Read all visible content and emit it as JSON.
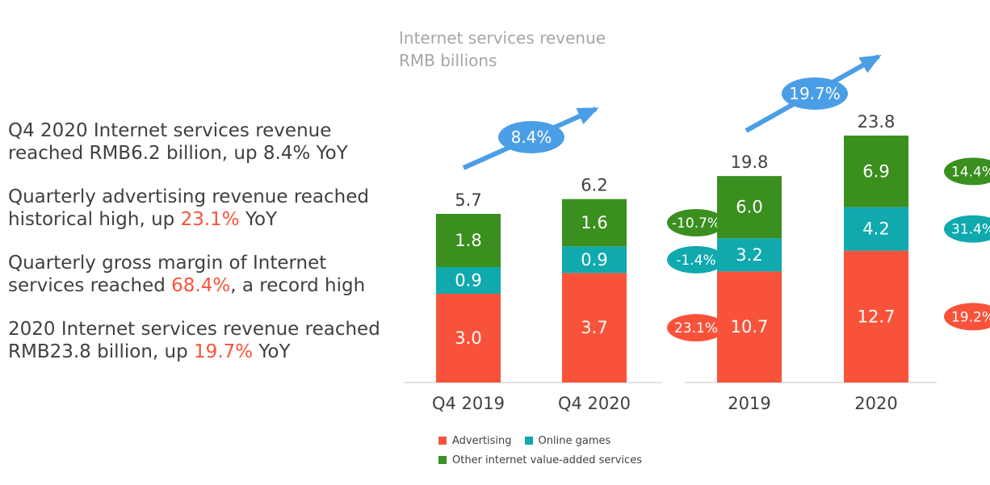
{
  "bullets": [
    {
      "parts": [
        {
          "text": "Q4 2020 Internet services revenue reached RMB6.2 billion, up 8.4% YoY",
          "highlight": false
        }
      ]
    },
    {
      "parts": [
        {
          "text": "Quarterly advertising revenue reached historical high, up ",
          "highlight": false
        },
        {
          "text": "23.1%",
          "highlight": true
        },
        {
          "text": " YoY",
          "highlight": false
        }
      ]
    },
    {
      "parts": [
        {
          "text": "Quarterly gross margin of Internet services reached ",
          "highlight": false
        },
        {
          "text": "68.4%",
          "highlight": true
        },
        {
          "text": ", a record high",
          "highlight": false
        }
      ]
    },
    {
      "parts": [
        {
          "text": "2020 Internet services revenue reached RMB23.8 billion, up ",
          "highlight": false
        },
        {
          "text": "19.7%",
          "highlight": true
        },
        {
          "text": " YoY",
          "highlight": false
        }
      ]
    }
  ],
  "colors": {
    "advertising": "#f8533a",
    "online_games": "#10a9ad",
    "other": "#3a8f1f",
    "arrow": "#4a9ee6",
    "text": "#404040",
    "title": "#a6a6a6",
    "highlight": "#f8533a"
  },
  "chart_data": {
    "type": "bar",
    "stacked": true,
    "title": "Internet services revenue",
    "subtitle": "RMB billions",
    "groups": [
      {
        "name": "quarterly",
        "categories": [
          "Q4 2019",
          "Q4 2020"
        ],
        "totals": [
          5.7,
          6.2
        ],
        "series": [
          {
            "name": "Advertising",
            "values": [
              3.0,
              3.7
            ]
          },
          {
            "name": "Online games",
            "values": [
              0.9,
              0.9
            ]
          },
          {
            "name": "Other internet value-added services",
            "values": [
              1.8,
              1.6
            ]
          }
        ],
        "growth_badges": {
          "Advertising": "23.1%",
          "Online games": "-1.4%",
          "Other internet value-added services": "-10.7%"
        },
        "total_growth": "8.4%"
      },
      {
        "name": "annual",
        "categories": [
          "2019",
          "2020"
        ],
        "totals": [
          19.8,
          23.8
        ],
        "series": [
          {
            "name": "Advertising",
            "values": [
              10.7,
              12.7
            ]
          },
          {
            "name": "Online games",
            "values": [
              3.2,
              4.2
            ]
          },
          {
            "name": "Other internet value-added services",
            "values": [
              6.0,
              6.9
            ]
          }
        ],
        "growth_badges": {
          "Advertising": "19.2%",
          "Online games": "31.4%",
          "Other internet value-added services": "14.4%"
        },
        "total_growth": "19.7%"
      }
    ],
    "legend": [
      {
        "name": "Advertising",
        "key": "advertising"
      },
      {
        "name": "Online games",
        "key": "online_games"
      },
      {
        "name": "Other internet value-added services",
        "key": "other"
      }
    ],
    "legend_position": "bottom",
    "grid": false
  }
}
